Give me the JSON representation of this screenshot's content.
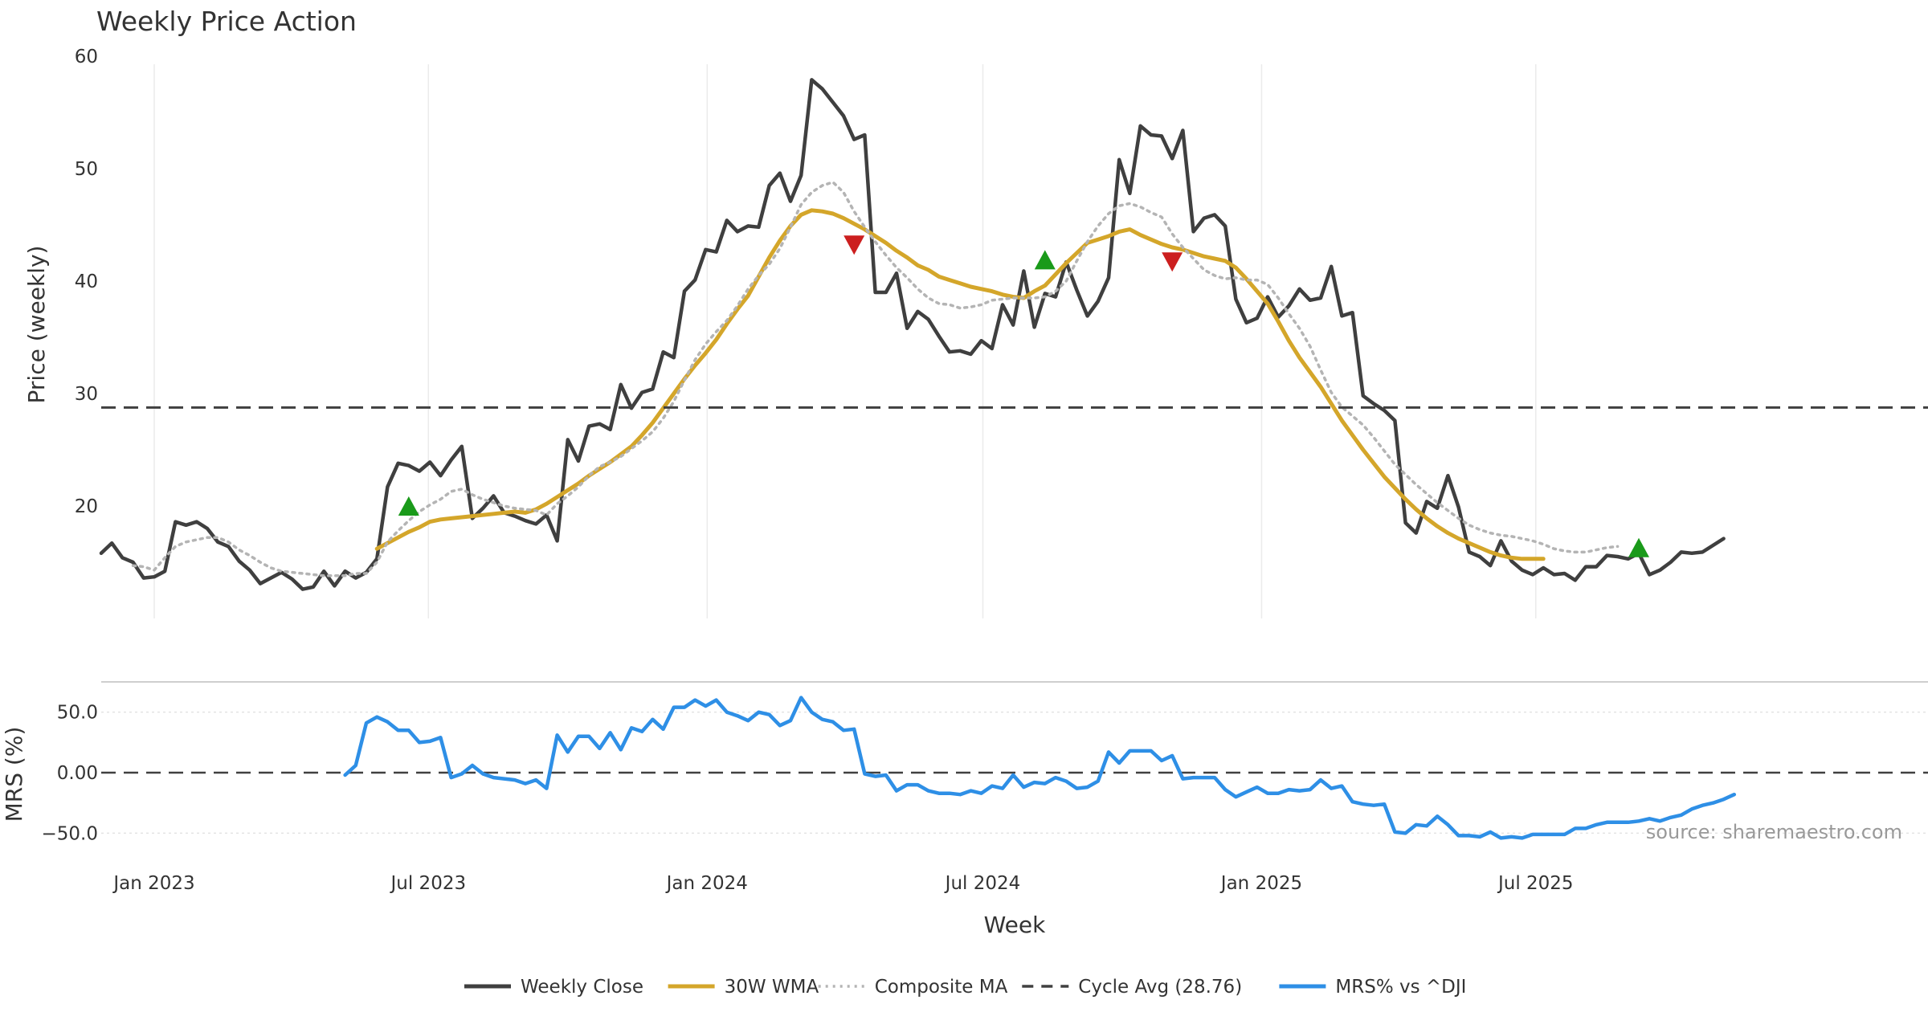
{
  "chart_data": {
    "type": "line",
    "title": "Weekly Price Action",
    "xlabel": "Week",
    "x_start": "2022-11-27",
    "weeks": 153,
    "x_ticks": [
      "Jan 2023",
      "Jul 2023",
      "Jan 2024",
      "Jul 2024",
      "Jan 2025",
      "Jul 2025"
    ],
    "x_tick_dates": [
      "2023-01-01",
      "2023-07-01",
      "2024-01-01",
      "2024-07-01",
      "2025-01-01",
      "2025-07-01"
    ],
    "price_panel": {
      "ylabel": "Price (weekly)",
      "ylim": [
        10,
        60
      ],
      "y_ticks": [
        "20",
        "30",
        "40",
        "50",
        "60"
      ],
      "y_tick_values": [
        20,
        30,
        40,
        50,
        60
      ],
      "grid": "x"
    },
    "mrs_panel": {
      "ylabel": "MRS (%)",
      "ylim": [
        -65,
        75
      ],
      "y_ticks": [
        "50.0",
        "0.00",
        "−50.0"
      ],
      "y_tick_values": [
        50,
        0,
        -50
      ],
      "grid": "y"
    },
    "series": [
      {
        "name": "Weekly Close",
        "color": "#3f3f3f",
        "style": "solid",
        "start_week": 0,
        "values": [
          15.8,
          16.7,
          15.4,
          15.0,
          13.6,
          13.7,
          14.2,
          18.6,
          18.3,
          18.6,
          18.0,
          16.8,
          16.4,
          15.1,
          14.3,
          13.1,
          13.6,
          14.1,
          13.5,
          12.6,
          12.8,
          14.2,
          12.9,
          14.2,
          13.6,
          14.1,
          15.3,
          21.7,
          23.8,
          23.6,
          23.1,
          23.9,
          22.7,
          24.1,
          25.3,
          18.9,
          19.8,
          20.9,
          19.4,
          19.1,
          18.7,
          18.4,
          19.2,
          16.9,
          25.9,
          24.0,
          27.1,
          27.3,
          26.8,
          30.8,
          28.7,
          30.1,
          30.4,
          33.7,
          33.2,
          39.1,
          40.1,
          42.8,
          42.6,
          45.4,
          44.4,
          44.9,
          44.8,
          48.5,
          49.6,
          47.1,
          49.4,
          57.9,
          57.1,
          55.9,
          54.7,
          52.6,
          53.0,
          39.0,
          39.0,
          40.7,
          35.8,
          37.3,
          36.6,
          35.1,
          33.7,
          33.8,
          33.5,
          34.7,
          34.0,
          37.9,
          36.1,
          40.9,
          35.9,
          38.9,
          38.6,
          41.7,
          39.2,
          36.9,
          38.2,
          40.3,
          50.8,
          47.8,
          53.8,
          53.0,
          52.9,
          50.9,
          53.4,
          44.4,
          45.6,
          45.9,
          44.9,
          38.4,
          36.3,
          36.7,
          38.6,
          36.8,
          37.8,
          39.3,
          38.3,
          38.5,
          41.3,
          36.9,
          37.2,
          29.8,
          29.1,
          28.5,
          27.6,
          18.5,
          17.6,
          20.4,
          19.8,
          22.7,
          19.9,
          15.9,
          15.5,
          14.7,
          16.9,
          15.1,
          14.3,
          13.9,
          14.5,
          13.9,
          14.0,
          13.4,
          14.6,
          14.6,
          15.6,
          15.5,
          15.3,
          15.8,
          13.9,
          14.3,
          15.0,
          15.9,
          15.8,
          15.9,
          16.5,
          17.1
        ]
      },
      {
        "name": "30W WMA",
        "color": "#d4a62a",
        "style": "solid",
        "start_week": 26,
        "values": [
          16.2,
          16.7,
          17.2,
          17.7,
          18.1,
          18.6,
          18.8,
          18.9,
          19.0,
          19.1,
          19.2,
          19.3,
          19.4,
          19.5,
          19.4,
          19.7,
          20.2,
          20.8,
          21.4,
          22.0,
          22.7,
          23.3,
          23.9,
          24.6,
          25.3,
          26.3,
          27.4,
          28.7,
          30.0,
          31.3,
          32.5,
          33.6,
          34.8,
          36.2,
          37.5,
          38.7,
          40.4,
          42.1,
          43.6,
          44.9,
          45.9,
          46.3,
          46.2,
          46.0,
          45.6,
          45.1,
          44.6,
          44.0,
          43.4,
          42.7,
          42.1,
          41.4,
          41.0,
          40.4,
          40.1,
          39.8,
          39.5,
          39.3,
          39.1,
          38.8,
          38.6,
          38.5,
          39.1,
          39.6,
          40.6,
          41.6,
          42.5,
          43.4,
          43.7,
          44.0,
          44.4,
          44.6,
          44.1,
          43.7,
          43.3,
          43.0,
          42.8,
          42.5,
          42.2,
          42.0,
          41.8,
          41.2,
          40.2,
          39.1,
          38.0,
          36.4,
          34.7,
          33.2,
          31.9,
          30.6,
          29.1,
          27.6,
          26.3,
          25.0,
          23.8,
          22.6,
          21.6,
          20.6,
          19.7,
          18.9,
          18.2,
          17.6,
          17.1,
          16.7,
          16.3,
          15.9,
          15.6,
          15.4,
          15.3,
          15.3,
          15.3
        ]
      },
      {
        "name": "Composite MA",
        "color": "#b4b4b4",
        "style": "dotted",
        "start_week": 3,
        "values": [
          14.7,
          14.6,
          14.3,
          15.4,
          16.4,
          16.8,
          17.0,
          17.2,
          17.2,
          16.8,
          16.1,
          15.6,
          15.0,
          14.5,
          14.2,
          14.1,
          14.0,
          13.9,
          13.8,
          13.8,
          13.8,
          14.0,
          14.0,
          15.0,
          16.8,
          17.8,
          18.7,
          19.5,
          20.1,
          20.6,
          21.3,
          21.5,
          21.0,
          20.6,
          20.3,
          20.0,
          19.8,
          19.7,
          19.6,
          19.2,
          20.2,
          20.9,
          21.7,
          22.7,
          23.5,
          23.9,
          24.4,
          25.1,
          25.8,
          26.6,
          27.8,
          29.3,
          31.2,
          33.0,
          34.4,
          35.5,
          36.5,
          37.8,
          39.3,
          40.5,
          41.5,
          42.9,
          44.8,
          46.8,
          47.9,
          48.5,
          48.8,
          47.9,
          46.2,
          44.8,
          43.5,
          42.3,
          41.2,
          40.3,
          39.3,
          38.5,
          38.0,
          37.9,
          37.6,
          37.7,
          37.9,
          38.3,
          38.4,
          38.5,
          38.5,
          38.5,
          38.6,
          39.1,
          40.0,
          41.8,
          43.5,
          44.9,
          46.0,
          46.7,
          46.9,
          46.6,
          46.1,
          45.7,
          44.2,
          43.0,
          42.0,
          41.0,
          40.5,
          40.2,
          40.3,
          40.1,
          40.1,
          39.7,
          38.5,
          37.1,
          35.8,
          34.2,
          32.1,
          30.1,
          28.8,
          28.0,
          27.2,
          26.1,
          24.9,
          23.7,
          22.8,
          21.9,
          21.1,
          20.3,
          19.6,
          18.9,
          18.3,
          17.9,
          17.6,
          17.4,
          17.3,
          17.1,
          16.9,
          16.6,
          16.2,
          16.0,
          15.9,
          15.9,
          16.1,
          16.3,
          16.4
        ]
      },
      {
        "name": "Cycle Avg (28.76)",
        "color": "#404040",
        "style": "dashed",
        "value": 28.76
      },
      {
        "name": "MRS% vs ^DJI",
        "color": "#2e8fe6",
        "style": "solid",
        "panel": "mrs",
        "start_week": 23,
        "values": [
          -2,
          6,
          41,
          46,
          42,
          35,
          35,
          25,
          26,
          29,
          -4,
          -1,
          6,
          -1,
          -4,
          -5,
          -6,
          -9,
          -6,
          -13,
          31,
          17,
          30,
          30,
          20,
          33,
          19,
          37,
          34,
          44,
          36,
          54,
          54,
          60,
          55,
          60,
          50,
          47,
          43,
          50,
          48,
          39,
          43,
          62,
          50,
          44,
          42,
          35,
          36,
          -1,
          -3,
          -2,
          -15,
          -10,
          -10,
          -15,
          -17,
          -17,
          -18,
          -15,
          -17,
          -11,
          -13,
          -2,
          -12,
          -8,
          -9,
          -4,
          -7,
          -13,
          -12,
          -7,
          17,
          8,
          18,
          18,
          18,
          10,
          14,
          -5,
          -4,
          -4,
          -4,
          -14,
          -20,
          -16,
          -12,
          -17,
          -17,
          -14,
          -15,
          -14,
          -6,
          -13,
          -11,
          -24,
          -26,
          -27,
          -26,
          -49,
          -50,
          -43,
          -44,
          -36,
          -43,
          -52,
          -52,
          -53,
          -49,
          -54,
          -53,
          -54,
          -51,
          -51,
          -51,
          -51,
          -46,
          -46,
          -43,
          -41,
          -41,
          -41,
          -40,
          -38,
          -40,
          -37,
          -35,
          -30,
          -27,
          -25,
          -22,
          -18
        ]
      }
    ],
    "signals": [
      {
        "type": "buy",
        "week": 29,
        "value": 20.0,
        "color": "#1a9a1a"
      },
      {
        "type": "sell",
        "week": 71,
        "value": 43.2,
        "color": "#cc1f1f"
      },
      {
        "type": "buy",
        "week": 89,
        "value": 41.9,
        "color": "#1a9a1a"
      },
      {
        "type": "sell",
        "week": 101,
        "value": 41.7,
        "color": "#cc1f1f"
      },
      {
        "type": "buy",
        "week": 145,
        "value": 16.3,
        "color": "#1a9a1a"
      }
    ],
    "legend": {
      "position": "bottom",
      "items": [
        "Weekly Close",
        "30W WMA",
        "Composite MA",
        "Cycle Avg (28.76)",
        "MRS% vs ^DJI"
      ]
    }
  },
  "watermark": "source: sharemaestro.com"
}
